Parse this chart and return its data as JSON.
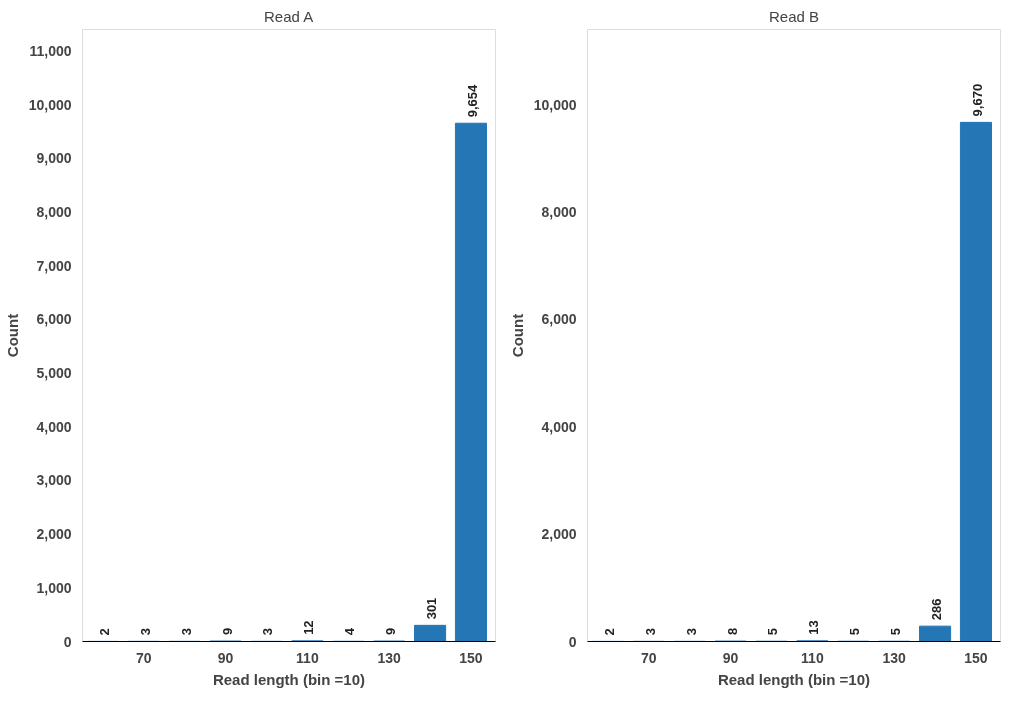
{
  "chart_data": [
    {
      "type": "bar",
      "title": "Read A",
      "xlabel": "Read length (bin =10)",
      "ylabel": "Count",
      "x": [
        60,
        70,
        80,
        90,
        100,
        110,
        120,
        130,
        140,
        150
      ],
      "series": [
        {
          "color": "#2576b5",
          "values": [
            2,
            3,
            3,
            9,
            3,
            12,
            4,
            9,
            301,
            9654
          ],
          "value_labels": [
            "2",
            "3",
            "3",
            "9",
            "3",
            "12",
            "4",
            "9",
            "301",
            "9,654"
          ]
        }
      ],
      "xlim": [
        55,
        156
      ],
      "xticks": [
        70,
        90,
        110,
        130,
        150
      ],
      "ylim": [
        0,
        11400
      ],
      "yticks": [
        {
          "value": 0,
          "label": "0"
        },
        {
          "value": 1000,
          "label": "1,000"
        },
        {
          "value": 2000,
          "label": "2,000"
        },
        {
          "value": 3000,
          "label": "3,000"
        },
        {
          "value": 4000,
          "label": "4,000"
        },
        {
          "value": 5000,
          "label": "5,000"
        },
        {
          "value": 6000,
          "label": "6,000"
        },
        {
          "value": 7000,
          "label": "7,000"
        },
        {
          "value": 8000,
          "label": "8,000"
        },
        {
          "value": 9000,
          "label": "9,000"
        },
        {
          "value": 10000,
          "label": "10,000"
        },
        {
          "value": 11000,
          "label": "11,000"
        }
      ],
      "grid": false
    },
    {
      "type": "bar",
      "title": "Read B",
      "xlabel": "Read length (bin =10)",
      "ylabel": "Count",
      "x": [
        60,
        70,
        80,
        90,
        100,
        110,
        120,
        130,
        140,
        150
      ],
      "series": [
        {
          "color": "#2576b5",
          "values": [
            2,
            3,
            3,
            8,
            5,
            13,
            5,
            5,
            286,
            9670
          ],
          "value_labels": [
            "2",
            "3",
            "3",
            "8",
            "5",
            "13",
            "5",
            "5",
            "286",
            "9,670"
          ]
        }
      ],
      "xlim": [
        55,
        156
      ],
      "xticks": [
        70,
        90,
        110,
        130,
        150
      ],
      "ylim": [
        0,
        11400
      ],
      "yticks": [
        {
          "value": 0,
          "label": "0"
        },
        {
          "value": 2000,
          "label": "2,000"
        },
        {
          "value": 4000,
          "label": "4,000"
        },
        {
          "value": 6000,
          "label": "6,000"
        },
        {
          "value": 8000,
          "label": "8,000"
        },
        {
          "value": 10000,
          "label": "10,000"
        }
      ],
      "grid": false
    }
  ]
}
